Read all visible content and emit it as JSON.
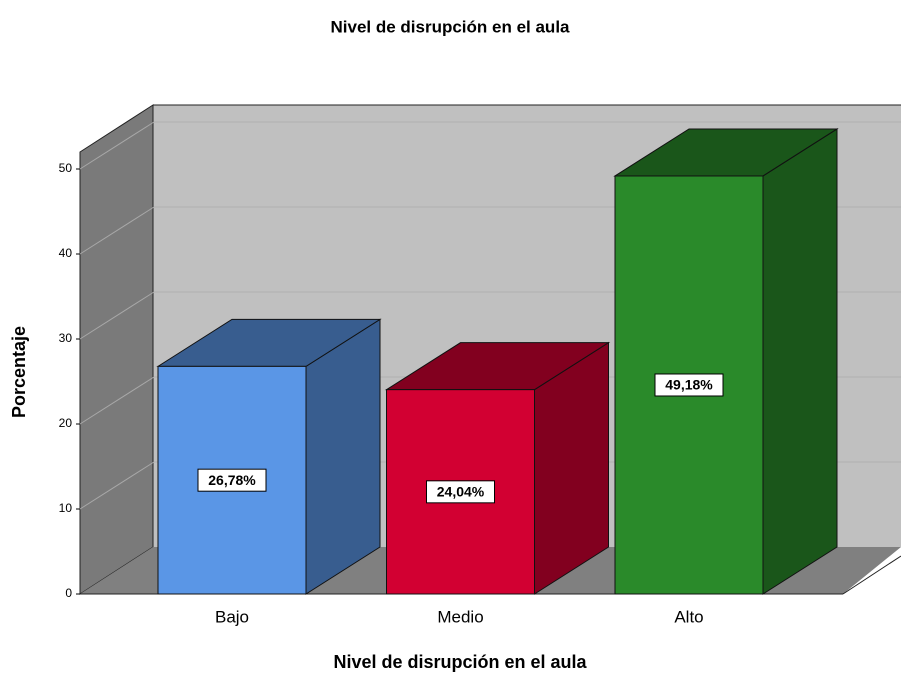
{
  "chart_data": {
    "type": "bar3d",
    "title": "Nivel de disrupción en el aula",
    "x_label": "Nivel de disrupción en el aula",
    "y_label": "Porcentaje",
    "categories": [
      "Bajo",
      "Medio",
      "Alto"
    ],
    "values": [
      26.78,
      24.04,
      49.18
    ],
    "value_labels": [
      "26,78%",
      "24,04%",
      "49,18%"
    ],
    "colors": [
      "#5a96e6",
      "#d20032",
      "#2a8a2a"
    ],
    "ylim": [
      0,
      52
    ],
    "yticks": [
      0,
      10,
      20,
      30,
      40,
      50
    ],
    "grid": true
  }
}
